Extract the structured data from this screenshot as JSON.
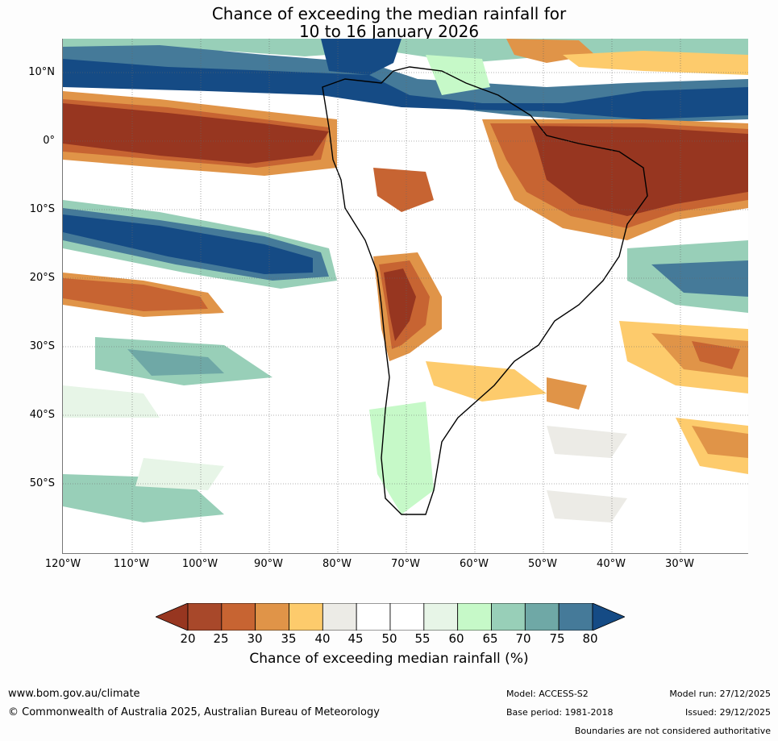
{
  "title": {
    "line1": "Chance of exceeding the median rainfall for",
    "line2": "10 to 16 January 2026"
  },
  "map": {
    "region": "South America and surrounding oceans",
    "latitude_labels": [
      "10°N",
      "0°",
      "10°S",
      "20°S",
      "30°S",
      "40°S",
      "50°S"
    ],
    "longitude_labels": [
      "120°W",
      "110°W",
      "100°W",
      "90°W",
      "80°W",
      "70°W",
      "60°W",
      "50°W",
      "40°W",
      "30°W"
    ]
  },
  "colorbar": {
    "ticks": [
      "20",
      "25",
      "30",
      "35",
      "40",
      "45",
      "50",
      "55",
      "60",
      "65",
      "70",
      "75",
      "80"
    ],
    "colors": [
      "#973620",
      "#a8482a",
      "#c76432",
      "#e09448",
      "#fdcb6c",
      "#ecebe6",
      "#ffffff",
      "#ffffff",
      "#e7f5e7",
      "#c6f9c8",
      "#98cfb8",
      "#6fa8a6",
      "#457a99",
      "#154b85",
      "#154b85"
    ],
    "label": "Chance of exceeding median rainfall (%)"
  },
  "footer": {
    "website": "www.bom.gov.au/climate",
    "copyright": "© Commonwealth of Australia 2025, Australian Bureau of Meteorology",
    "model": "Model: ACCESS-S2",
    "base_period": "Base period: 1981-2018",
    "model_run": "Model run: 27/12/2025",
    "issued": "Issued: 29/12/2025",
    "disclaimer": "Boundaries are not considered authoritative"
  }
}
